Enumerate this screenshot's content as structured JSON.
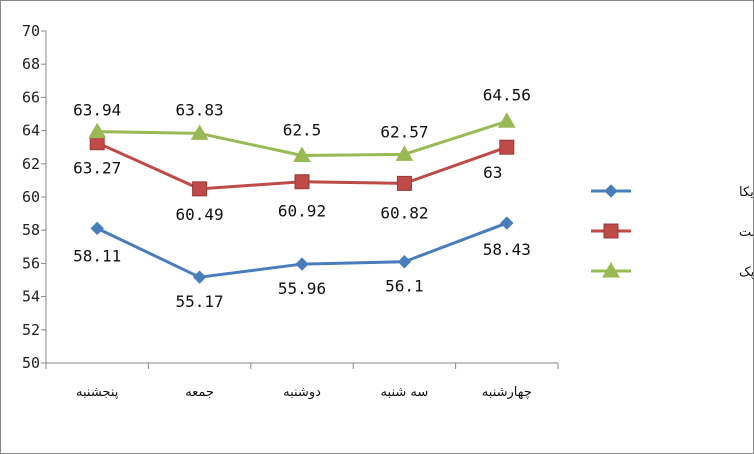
{
  "chart_data": {
    "type": "line",
    "categories": [
      "پنجشنبه",
      "جمعه",
      "دوشنبه",
      "سه شنبه",
      "چهارشنبه"
    ],
    "ylim": [
      50,
      70
    ],
    "yticks": [
      50,
      52,
      54,
      56,
      58,
      60,
      62,
      64,
      66,
      68,
      70
    ],
    "grid": false,
    "legend_position": "right",
    "series": [
      {
        "name": "نفت خام آمریکا",
        "values": [
          58.11,
          55.17,
          55.96,
          56.1,
          58.43
        ],
        "labels": [
          "58.11",
          "55.17",
          "55.96",
          "56.1",
          "58.43"
        ],
        "color": "#4a7ebb",
        "marker": "diamond"
      },
      {
        "name": "نفت برنت",
        "values": [
          63.27,
          60.49,
          60.92,
          60.82,
          63
        ],
        "labels": [
          "63.27",
          "60.49",
          "60.92",
          "60.82",
          "63"
        ],
        "color": "#be4b48",
        "marker": "square"
      },
      {
        "name": "نفت اوپک",
        "values": [
          63.94,
          63.83,
          62.5,
          62.57,
          64.56
        ],
        "labels": [
          "63.94",
          "63.83",
          "62.5",
          "62.57",
          "64.56"
        ],
        "color": "#98b954",
        "marker": "triangle"
      }
    ]
  }
}
